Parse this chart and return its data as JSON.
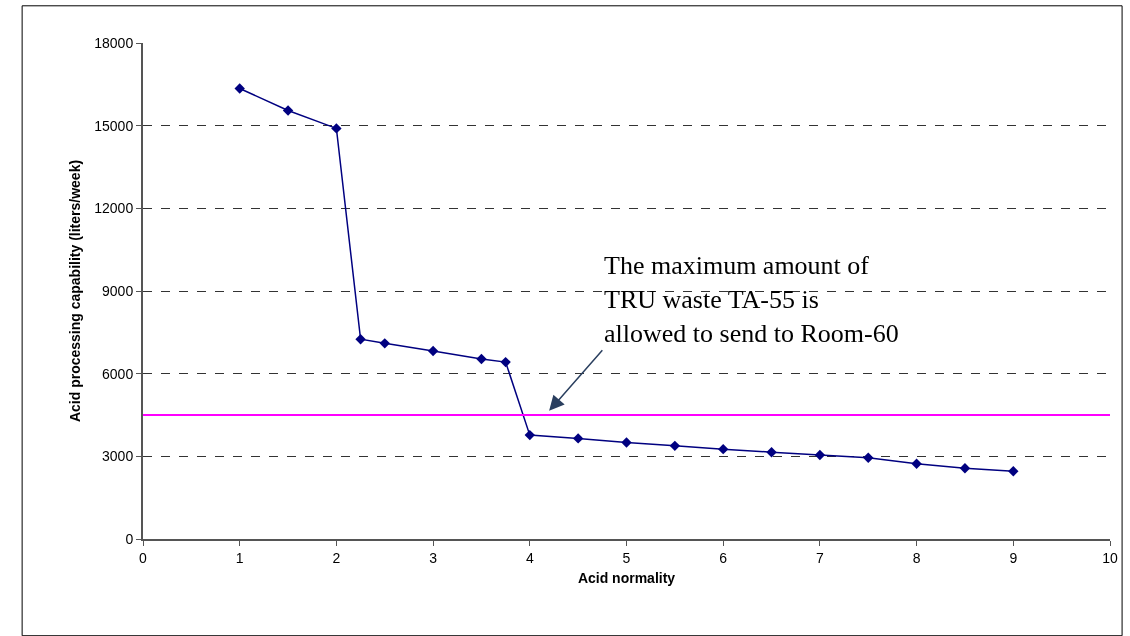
{
  "chart_data": {
    "type": "line",
    "xlabel": "Acid normality",
    "ylabel": "Acid processing capability (liters/week)",
    "x": [
      1,
      1.5,
      2,
      2.25,
      2.5,
      3,
      3.5,
      3.75,
      4,
      4.5,
      5,
      5.5,
      6,
      6.5,
      7,
      7.5,
      8,
      8.5,
      9
    ],
    "series": [
      {
        "color": "#000080",
        "values": [
          16350,
          15550,
          14900,
          7250,
          7100,
          6820,
          6530,
          6420,
          3770,
          3650,
          3500,
          3380,
          3260,
          3150,
          3050,
          2950,
          2730,
          2570,
          2460
        ]
      }
    ],
    "marker": "diamond",
    "line_style": "solid",
    "xlim": [
      0,
      10
    ],
    "xticks": [
      0,
      1,
      2,
      3,
      4,
      5,
      6,
      7,
      8,
      9,
      10
    ],
    "ylim": [
      0,
      18000
    ],
    "yticks": [
      0,
      3000,
      6000,
      9000,
      12000,
      15000,
      18000
    ],
    "grid": "y",
    "ref_lines": [
      {
        "axis": "y",
        "value": 4500,
        "color": "#ff00ff",
        "line_style": "solid"
      }
    ],
    "annotations": [
      {
        "text": "The maximum amount of\nTRU waste TA-55 is\nallowed to send to Room-60",
        "x": 4.2,
        "y": 4650
      }
    ]
  }
}
